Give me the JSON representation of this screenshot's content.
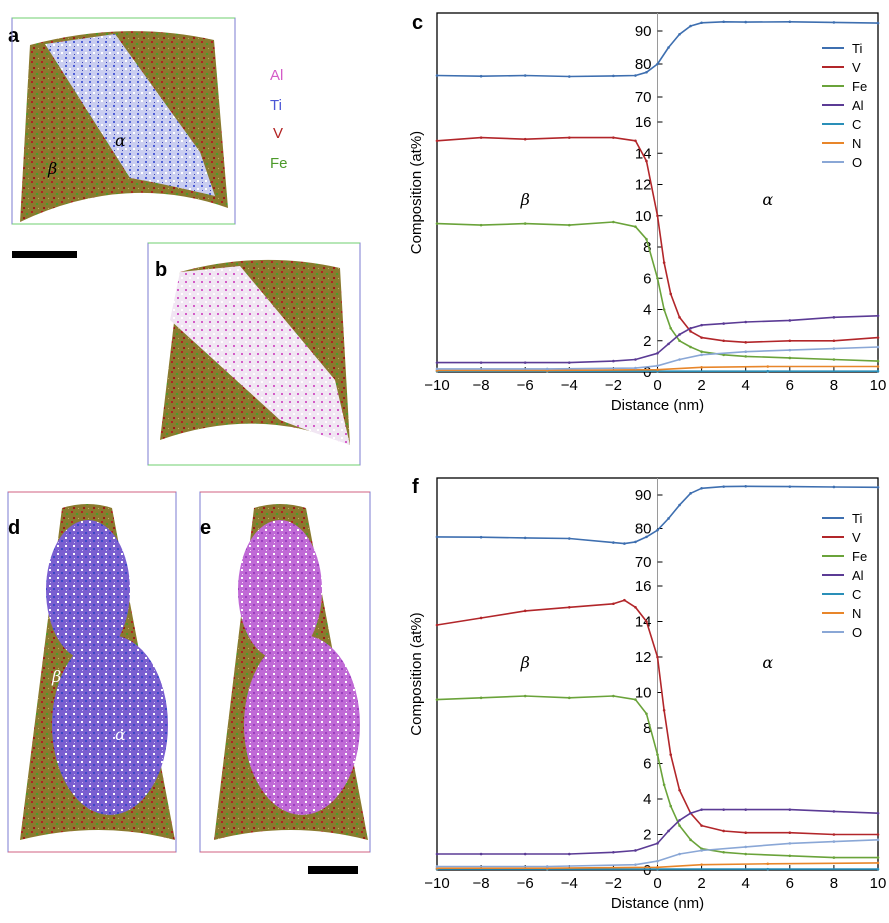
{
  "colors": {
    "Ti": "#3e6fb0",
    "V": "#b2262a",
    "Fe": "#6aa33a",
    "Al": "#5b3b95",
    "C": "#2a8fb8",
    "N": "#e8862a",
    "O": "#8aa7d6"
  },
  "panels": {
    "a": "a",
    "b": "b",
    "c": "c",
    "d": "d",
    "e": "e",
    "f": "f"
  },
  "element_key": [
    "Al",
    "Ti",
    "V",
    "Fe"
  ],
  "element_key_colors": [
    "#d45bc8",
    "#4b56d6",
    "#b22222",
    "#4c9a2a"
  ],
  "phase_labels": {
    "beta": "β",
    "alpha": "α"
  },
  "chart_data": [
    {
      "panel": "c",
      "type": "line",
      "xlabel": "Distance (nm)",
      "ylabel": "Composition (at%)",
      "xlim": [
        -10,
        10
      ],
      "x_ticks": [
        "−10",
        "−8",
        "−6",
        "−4",
        "−2",
        "0",
        "2",
        "4",
        "6",
        "8",
        "10"
      ],
      "y_ticks": [
        "0",
        "2",
        "4",
        "6",
        "8",
        "10",
        "12",
        "14",
        "16",
        "70",
        "80",
        "90"
      ],
      "ylim_lower": [
        0,
        16
      ],
      "ylim_upper": [
        70,
        95
      ],
      "axis_break": "between 16 and 70",
      "legend": "top-right",
      "phase_left": "β",
      "phase_right": "α",
      "series": [
        {
          "name": "Ti",
          "x": [
            -10,
            -8,
            -6,
            -4,
            -2,
            -1,
            -0.5,
            0,
            0.5,
            1,
            1.5,
            2,
            3,
            4,
            6,
            8,
            10
          ],
          "values": [
            76.5,
            76.3,
            76.5,
            76.2,
            76.4,
            76.5,
            77.5,
            80,
            85,
            89,
            91.5,
            92.5,
            92.8,
            92.7,
            92.8,
            92.6,
            92.4
          ]
        },
        {
          "name": "V",
          "x": [
            -10,
            -8,
            -6,
            -4,
            -2,
            -1,
            -0.5,
            0,
            0.3,
            0.6,
            1,
            1.5,
            2,
            3,
            4,
            6,
            8,
            10
          ],
          "values": [
            14.8,
            15,
            14.9,
            15,
            15,
            14.8,
            13.5,
            10,
            7,
            5,
            3.5,
            2.6,
            2.2,
            2,
            1.9,
            2,
            2,
            2.2
          ]
        },
        {
          "name": "Fe",
          "x": [
            -10,
            -8,
            -6,
            -4,
            -2,
            -1,
            -0.5,
            0,
            0.3,
            0.6,
            1,
            1.5,
            2,
            3,
            4,
            6,
            8,
            10
          ],
          "values": [
            9.5,
            9.4,
            9.5,
            9.4,
            9.6,
            9.3,
            8.5,
            6,
            4,
            2.8,
            2,
            1.6,
            1.3,
            1.1,
            1,
            0.9,
            0.8,
            0.7
          ]
        },
        {
          "name": "Al",
          "x": [
            -10,
            -8,
            -6,
            -4,
            -2,
            -1,
            0,
            0.5,
            1,
            1.5,
            2,
            3,
            4,
            6,
            8,
            10
          ],
          "values": [
            0.6,
            0.6,
            0.6,
            0.6,
            0.7,
            0.8,
            1.2,
            1.8,
            2.4,
            2.8,
            3,
            3.1,
            3.2,
            3.3,
            3.5,
            3.6
          ]
        },
        {
          "name": "C",
          "x": [
            -10,
            -5,
            0,
            5,
            10
          ],
          "values": [
            0.05,
            0.05,
            0.05,
            0.05,
            0.05
          ]
        },
        {
          "name": "N",
          "x": [
            -10,
            -5,
            0,
            2,
            5,
            10
          ],
          "values": [
            0.1,
            0.1,
            0.15,
            0.3,
            0.35,
            0.35
          ]
        },
        {
          "name": "O",
          "x": [
            -10,
            -5,
            -1,
            0,
            1,
            2,
            4,
            6,
            8,
            10
          ],
          "values": [
            0.2,
            0.2,
            0.25,
            0.4,
            0.8,
            1.1,
            1.3,
            1.4,
            1.5,
            1.6
          ]
        }
      ]
    },
    {
      "panel": "f",
      "type": "line",
      "xlabel": "Distance (nm)",
      "ylabel": "Composition (at%)",
      "xlim": [
        -10,
        10
      ],
      "x_ticks": [
        "−10",
        "−8",
        "−6",
        "−4",
        "−2",
        "0",
        "2",
        "4",
        "6",
        "8",
        "10"
      ],
      "y_ticks": [
        "0",
        "2",
        "4",
        "6",
        "8",
        "10",
        "12",
        "14",
        "16",
        "70",
        "80",
        "90"
      ],
      "ylim_lower": [
        0,
        16
      ],
      "ylim_upper": [
        70,
        95
      ],
      "axis_break": "between 16 and 70",
      "legend": "top-right",
      "phase_left": "β",
      "phase_right": "α",
      "series": [
        {
          "name": "Ti",
          "x": [
            -10,
            -8,
            -6,
            -4,
            -2,
            -1.5,
            -1,
            -0.5,
            0,
            0.5,
            1,
            1.5,
            2,
            3,
            4,
            6,
            8,
            10
          ],
          "values": [
            77.5,
            77.4,
            77.2,
            77,
            75.8,
            75.5,
            76,
            77.5,
            79.5,
            83,
            87,
            90.5,
            92,
            92.5,
            92.6,
            92.5,
            92.4,
            92.3
          ]
        },
        {
          "name": "V",
          "x": [
            -10,
            -8,
            -6,
            -4,
            -2,
            -1.5,
            -1,
            -0.5,
            0,
            0.3,
            0.6,
            1,
            1.5,
            2,
            3,
            4,
            6,
            8,
            10
          ],
          "values": [
            13.8,
            14.2,
            14.6,
            14.8,
            15,
            15.2,
            14.8,
            14,
            12,
            9,
            6.5,
            4.5,
            3.2,
            2.5,
            2.2,
            2.1,
            2.1,
            2,
            2
          ]
        },
        {
          "name": "Fe",
          "x": [
            -10,
            -8,
            -6,
            -4,
            -2,
            -1,
            -0.5,
            0,
            0.3,
            0.6,
            1,
            1.5,
            2,
            3,
            4,
            6,
            8,
            10
          ],
          "values": [
            9.6,
            9.7,
            9.8,
            9.7,
            9.8,
            9.6,
            8.8,
            6.5,
            4.8,
            3.6,
            2.5,
            1.7,
            1.2,
            1,
            0.9,
            0.8,
            0.7,
            0.7
          ]
        },
        {
          "name": "Al",
          "x": [
            -10,
            -8,
            -6,
            -4,
            -2,
            -1,
            0,
            0.5,
            1,
            1.5,
            2,
            3,
            4,
            6,
            8,
            10
          ],
          "values": [
            0.9,
            0.9,
            0.9,
            0.9,
            1,
            1.1,
            1.5,
            2.2,
            2.8,
            3.2,
            3.4,
            3.4,
            3.4,
            3.4,
            3.3,
            3.2
          ]
        },
        {
          "name": "C",
          "x": [
            -10,
            -5,
            0,
            5,
            10
          ],
          "values": [
            0.05,
            0.05,
            0.05,
            0.05,
            0.05
          ]
        },
        {
          "name": "N",
          "x": [
            -10,
            -5,
            0,
            2,
            5,
            10
          ],
          "values": [
            0.1,
            0.1,
            0.15,
            0.3,
            0.35,
            0.4
          ]
        },
        {
          "name": "O",
          "x": [
            -10,
            -5,
            -1,
            0,
            1,
            2,
            4,
            6,
            8,
            10
          ],
          "values": [
            0.2,
            0.2,
            0.3,
            0.5,
            0.9,
            1.1,
            1.3,
            1.5,
            1.6,
            1.7
          ]
        }
      ]
    }
  ]
}
